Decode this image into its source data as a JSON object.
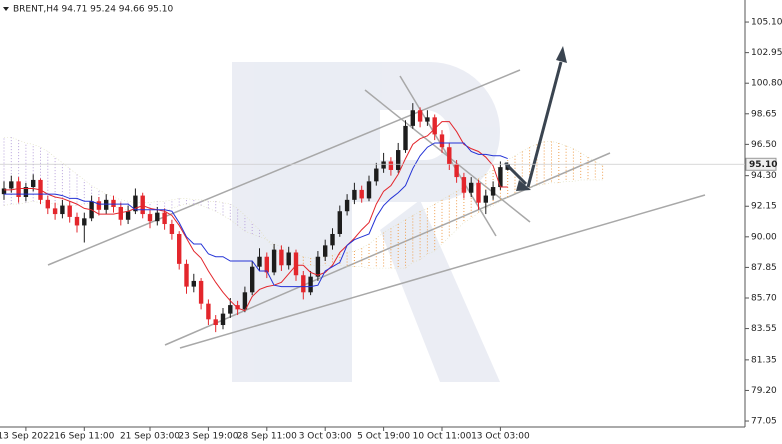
{
  "chart_data": {
    "type": "candlestick",
    "title": "BRENT,H4  94.71 95.24 94.66 95.10",
    "categories": [
      null,
      null,
      null,
      "13 Sep 2022",
      null,
      null,
      null,
      null,
      null,
      null,
      null,
      "16 Sep 11:00",
      null,
      null,
      null,
      null,
      null,
      null,
      null,
      null,
      "21 Sep 03:00",
      null,
      null,
      null,
      null,
      null,
      null,
      null,
      "23 Sep 19:00",
      null,
      null,
      null,
      null,
      null,
      null,
      null,
      "28 Sep 11:00",
      null,
      null,
      null,
      null,
      null,
      null,
      null,
      "3 Oct 03:00",
      null,
      null,
      null,
      null,
      null,
      null,
      null,
      "5 Oct 19:00",
      null,
      null,
      null,
      null,
      null,
      null,
      null,
      "10 Oct 11:00",
      null,
      null,
      null,
      null,
      null,
      null,
      null,
      "13 Oct 03:00",
      null,
      null,
      null,
      null,
      null,
      null,
      null,
      null,
      null,
      null,
      null,
      null,
      null,
      null
    ],
    "open": [
      93.0,
      93.4,
      93.9,
      92.8,
      93.5,
      94.0,
      92.6,
      92.0,
      91.6,
      92.2,
      91.4,
      90.8,
      91.3,
      92.5,
      91.9,
      92.6,
      92.1,
      91.2,
      91.8,
      92.9,
      91.6,
      91.1,
      91.7,
      90.9,
      90.2,
      88.1,
      86.5,
      86.9,
      85.3,
      84.2,
      83.8,
      84.6,
      85.2,
      84.9,
      86.1,
      87.9,
      88.6,
      87.5,
      89.1,
      88.0,
      88.9,
      87.3,
      86.1,
      87.2,
      88.6,
      89.4,
      90.2,
      91.8,
      92.6,
      93.3,
      92.7,
      93.9,
      94.8,
      95.3,
      94.7,
      96.1,
      97.8,
      98.9,
      98.1,
      98.4,
      97.2,
      96.3,
      95.1,
      94.2,
      93.1,
      93.8,
      92.4,
      92.9,
      93.5,
      94.71,
      null,
      null,
      null,
      null,
      null,
      null,
      null,
      null,
      null,
      null,
      null,
      null,
      null
    ],
    "high": [
      93.9,
      94.3,
      94.2,
      93.8,
      94.4,
      94.1,
      92.9,
      92.4,
      92.6,
      92.5,
      91.7,
      91.7,
      92.9,
      92.8,
      93.0,
      92.9,
      92.4,
      92.2,
      93.4,
      93.1,
      91.9,
      92.1,
      92.0,
      91.2,
      90.4,
      88.4,
      87.4,
      87.1,
      85.6,
      84.5,
      85.0,
      85.7,
      85.5,
      86.5,
      88.3,
      89.2,
      88.9,
      89.5,
      89.4,
      89.3,
      89.1,
      87.6,
      87.6,
      89.0,
      89.8,
      90.6,
      92.2,
      93.0,
      93.8,
      93.6,
      94.3,
      95.2,
      95.9,
      95.6,
      96.6,
      98.2,
      99.4,
      99.1,
      98.9,
      98.6,
      97.5,
      96.6,
      95.4,
      94.5,
      94.2,
      94.0,
      93.3,
      93.9,
      95.3,
      95.24,
      null,
      null,
      null,
      null,
      null,
      null,
      null,
      null,
      null,
      null,
      null,
      null,
      null
    ],
    "low": [
      92.6,
      93.1,
      92.4,
      92.5,
      93.2,
      92.3,
      91.6,
      91.2,
      91.3,
      91.0,
      90.3,
      89.6,
      91.1,
      91.5,
      91.6,
      91.7,
      90.8,
      90.9,
      91.6,
      91.3,
      90.6,
      90.8,
      90.5,
      89.8,
      87.7,
      86.0,
      86.1,
      84.9,
      83.8,
      83.3,
      83.5,
      84.3,
      84.5,
      84.7,
      85.9,
      87.6,
      87.1,
      87.3,
      87.6,
      87.7,
      86.9,
      85.6,
      85.9,
      86.9,
      88.3,
      89.1,
      90.0,
      91.5,
      92.3,
      92.4,
      92.5,
      93.6,
      94.5,
      94.3,
      94.5,
      95.9,
      97.6,
      97.7,
      97.8,
      96.8,
      95.9,
      94.7,
      93.8,
      92.7,
      92.8,
      91.9,
      91.6,
      92.6,
      93.3,
      94.66,
      null,
      null,
      null,
      null,
      null,
      null,
      null,
      null,
      null,
      null,
      null,
      null,
      null
    ],
    "close": [
      93.4,
      93.9,
      92.8,
      93.5,
      94.0,
      92.6,
      92.0,
      91.6,
      92.2,
      91.4,
      90.8,
      91.3,
      92.5,
      91.9,
      92.6,
      92.1,
      91.2,
      91.8,
      92.9,
      91.6,
      91.1,
      91.7,
      90.9,
      90.2,
      88.1,
      86.5,
      86.9,
      85.3,
      84.2,
      83.8,
      84.6,
      85.2,
      84.9,
      86.1,
      87.9,
      88.6,
      87.5,
      89.1,
      88.0,
      88.9,
      87.3,
      86.1,
      87.2,
      88.6,
      89.4,
      90.2,
      91.8,
      92.6,
      93.3,
      92.7,
      93.9,
      94.8,
      95.3,
      94.7,
      96.1,
      97.8,
      98.9,
      98.1,
      98.4,
      97.2,
      96.3,
      95.1,
      94.2,
      93.1,
      93.8,
      92.4,
      92.9,
      93.5,
      94.9,
      95.1,
      null,
      null,
      null,
      null,
      null,
      null,
      null,
      null,
      null,
      null,
      null,
      null,
      null
    ],
    "tenkan": [
      93.3,
      93.3,
      93.4,
      93.4,
      93.4,
      93.3,
      93.0,
      92.8,
      92.7,
      92.5,
      92.3,
      92.0,
      91.9,
      91.6,
      91.6,
      91.6,
      91.7,
      91.8,
      92.0,
      92.2,
      92.0,
      91.9,
      91.8,
      91.5,
      90.8,
      89.9,
      89.0,
      88.5,
      87.6,
      86.8,
      86.1,
      85.5,
      85.0,
      84.8,
      85.8,
      86.3,
      86.5,
      86.6,
      86.8,
      87.4,
      88.0,
      88.0,
      87.5,
      87.3,
      87.5,
      88.0,
      88.9,
      89.4,
      89.9,
      90.5,
      91.0,
      92.3,
      93.2,
      93.6,
      94.4,
      95.5,
      96.5,
      96.9,
      97.1,
      97.6,
      98.1,
      98.1,
      97.4,
      96.5,
      96.2,
      96.0,
      95.6,
      95.0,
      93.5,
      93.5,
      null,
      null,
      null,
      null,
      null,
      null,
      null,
      null,
      null,
      null,
      null,
      null,
      null
    ],
    "kijun": [
      93.0,
      93.0,
      93.0,
      93.0,
      93.0,
      93.0,
      93.0,
      93.0,
      92.9,
      92.7,
      92.7,
      92.5,
      92.5,
      92.3,
      92.3,
      92.3,
      92.3,
      92.3,
      91.9,
      91.9,
      91.9,
      91.9,
      91.9,
      91.8,
      91.0,
      90.0,
      89.5,
      89.5,
      88.8,
      88.6,
      88.6,
      88.3,
      88.3,
      88.3,
      88.3,
      87.6,
      87.6,
      86.6,
      86.5,
      86.5,
      86.5,
      86.5,
      86.5,
      86.6,
      87.6,
      87.9,
      88.2,
      89.4,
      89.8,
      90.0,
      90.2,
      91.4,
      92.2,
      92.7,
      93.1,
      93.6,
      94.8,
      95.7,
      96.3,
      96.6,
      96.6,
      96.6,
      96.6,
      96.6,
      96.0,
      95.8,
      95.8,
      95.7,
      95.7,
      95.5,
      null,
      null,
      null,
      null,
      null,
      null,
      null,
      null,
      null,
      null,
      null,
      null,
      null
    ],
    "span_a": [
      92.2,
      92.3,
      92.3,
      92.4,
      92.5,
      92.4,
      92.4,
      92.3,
      92.3,
      92.2,
      92.2,
      92.3,
      92.4,
      92.3,
      92.2,
      92.1,
      92.0,
      91.9,
      91.8,
      91.7,
      91.6,
      91.6,
      91.7,
      92.0,
      92.2,
      92.3,
      92.3,
      92.2,
      92.0,
      91.8,
      91.5,
      91.2,
      90.8,
      90.4,
      90.2,
      90.0,
      89.8,
      89.5,
      89.3,
      89.0,
      88.8,
      88.6,
      88.5,
      88.5,
      88.6,
      88.7,
      88.8,
      88.9,
      89.0,
      89.2,
      89.5,
      89.9,
      90.3,
      90.6,
      90.9,
      91.2,
      91.5,
      91.8,
      92.0,
      92.3,
      92.6,
      92.9,
      93.2,
      93.5,
      93.8,
      94.1,
      94.4,
      94.7,
      95.0,
      95.4,
      95.7,
      96.0,
      96.3,
      96.5,
      96.7,
      96.7,
      96.6,
      96.4,
      96.2,
      95.9,
      95.6,
      95.3,
      95.0
    ],
    "span_b": [
      97.0,
      97.0,
      96.8,
      96.6,
      96.5,
      96.3,
      96.0,
      95.6,
      95.2,
      94.8,
      94.4,
      94.0,
      93.6,
      93.3,
      93.0,
      92.8,
      92.6,
      92.5,
      92.4,
      92.4,
      92.4,
      92.5,
      92.5,
      92.6,
      92.7,
      92.7,
      92.6,
      92.6,
      92.5,
      92.5,
      92.4,
      92.3,
      92.0,
      91.5,
      91.0,
      90.5,
      89.8,
      89.2,
      88.6,
      88.2,
      88.0,
      88.0,
      88.0,
      88.0,
      88.0,
      88.0,
      88.0,
      87.9,
      87.9,
      87.9,
      87.8,
      87.8,
      87.8,
      87.8,
      87.8,
      87.8,
      88.2,
      88.4,
      88.8,
      89.0,
      89.5,
      90.0,
      90.5,
      91.0,
      91.3,
      91.7,
      92.0,
      92.2,
      92.5,
      92.8,
      93.1,
      93.3,
      93.5,
      93.6,
      93.7,
      93.8,
      93.8,
      93.9,
      93.9,
      94.0,
      94.0,
      94.0,
      94.0
    ],
    "last_price": {
      "value": 95.1,
      "label": "95.10"
    },
    "ylim": [
      76.63,
      106.65
    ],
    "yticks": [
      {
        "value": 105.1,
        "label": "105.10"
      },
      {
        "value": 102.95,
        "label": "102.95"
      },
      {
        "value": 100.8,
        "label": "100.80"
      },
      {
        "value": 98.65,
        "label": "98.65"
      },
      {
        "value": 96.5,
        "label": "96.50"
      },
      {
        "value": 94.3,
        "label": "94.30"
      },
      {
        "value": 92.15,
        "label": "92.15"
      },
      {
        "value": 90.0,
        "label": "90.00"
      },
      {
        "value": 87.85,
        "label": "87.85"
      },
      {
        "value": 85.7,
        "label": "85.70"
      },
      {
        "value": 83.55,
        "label": "83.55"
      },
      {
        "value": 81.35,
        "label": "81.35"
      },
      {
        "value": 79.2,
        "label": "79.20"
      },
      {
        "value": 77.05,
        "label": "77.05"
      }
    ],
    "colors": {
      "up": "#1d1d1d",
      "down": "#e3262c",
      "tenkan": "#e3262c",
      "kijun": "#2433d6",
      "cloud_up": "#f0a050",
      "cloud_down": "#b8a2dc"
    }
  }
}
